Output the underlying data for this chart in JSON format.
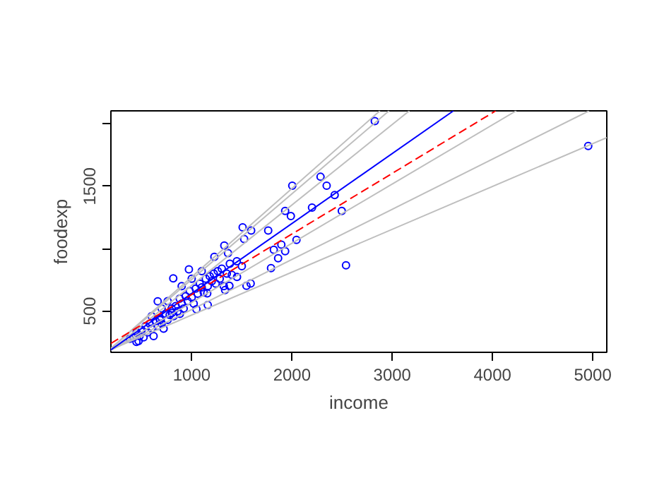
{
  "chart_data": {
    "type": "scatter",
    "xlabel": "income",
    "ylabel": "foodexp",
    "xlim": [
      194,
      5140
    ],
    "ylim": [
      170,
      2104
    ],
    "xticks": [
      1000,
      2000,
      3000,
      4000,
      5000
    ],
    "yticks": [
      500,
      {
        "value": 1000,
        "label": null
      },
      1500,
      {
        "value": 2000,
        "label": null
      }
    ],
    "grid": false,
    "series": [
      {
        "marker": "circle",
        "color": "#0000ff",
        "x": [
          2826,
          4955,
          2003,
          2285,
          2346,
          2426,
          1932,
          1989,
          2200,
          2497,
          2539,
          2045,
          1791,
          1508,
          1593,
          1763,
          1523,
          1362,
          1894,
          1932,
          1819,
          1862,
          1546,
          1588,
          1376,
          1333,
          1452,
          1325,
          1226,
          816,
          972,
          1155,
          1160,
          1047,
          882,
          684,
          661,
          802,
          449,
          383,
          420,
          450,
          470,
          480,
          500,
          520,
          540,
          560,
          580,
          600,
          620,
          640,
          660,
          680,
          700,
          720,
          740,
          760,
          780,
          800,
          820,
          840,
          860,
          880,
          900,
          920,
          940,
          960,
          980,
          1000,
          1020,
          1040,
          1060,
          1080,
          1100,
          1120,
          1140,
          1160,
          1180,
          1200,
          1220,
          1240,
          1260,
          1280,
          1300,
          1320,
          1350,
          1380,
          1400,
          1450,
          1500,
          700,
          900,
          1000,
          600,
          760,
          1100
        ],
        "values": [
          2022,
          1823,
          1505,
          1576,
          1505,
          1430,
          1302,
          1261,
          1329,
          1302,
          867,
          1070,
          845,
          1171,
          1145,
          1145,
          1078,
          965,
          1033,
          980,
          991,
          924,
          703,
          721,
          703,
          669,
          774,
          1025,
          935,
          763,
          834,
          642,
          549,
          515,
          478,
          429,
          579,
          485,
          253,
          279,
          290,
          330,
          260,
          300,
          350,
          290,
          380,
          330,
          400,
          360,
          300,
          420,
          380,
          440,
          400,
          360,
          480,
          430,
          470,
          520,
          460,
          540,
          500,
          600,
          560,
          520,
          620,
          580,
          660,
          610,
          560,
          680,
          640,
          720,
          690,
          650,
          760,
          700,
          780,
          740,
          800,
          720,
          820,
          760,
          840,
          700,
          800,
          880,
          790,
          900,
          860,
          520,
          700,
          760,
          460,
          580,
          820
        ]
      },
      {
        "type": "line",
        "color": "#bebebe",
        "x": [
          194,
          5140
        ],
        "values": [
          191.5,
          1889.9
        ]
      },
      {
        "type": "line",
        "color": "#bebebe",
        "x": [
          194,
          4962.3
        ],
        "values": [
          188.1,
          2104
        ]
      },
      {
        "type": "line",
        "color": "#bebebe",
        "x": [
          194,
          4236.5
        ],
        "values": [
          187.5,
          2104
        ]
      },
      {
        "type": "line",
        "color": "#bebebe",
        "x": [
          194,
          3170.2
        ],
        "values": [
          187.3,
          2104
        ]
      },
      {
        "type": "line",
        "color": "#bebebe",
        "x": [
          194,
          2967.6
        ],
        "values": [
          200.5,
          2104
        ]
      },
      {
        "type": "line",
        "color": "#bebebe",
        "x": [
          194,
          2876.3
        ],
        "values": [
          201.7,
          2104
        ]
      },
      {
        "type": "line",
        "color": "#0000ff",
        "x": [
          194,
          3610.4
        ],
        "values": [
          190.2,
          2104
        ]
      },
      {
        "type": "line",
        "color": "#ff0000",
        "line_style": "dashed",
        "x": [
          194,
          4032.4
        ],
        "values": [
          241.6,
          2104
        ]
      }
    ]
  }
}
